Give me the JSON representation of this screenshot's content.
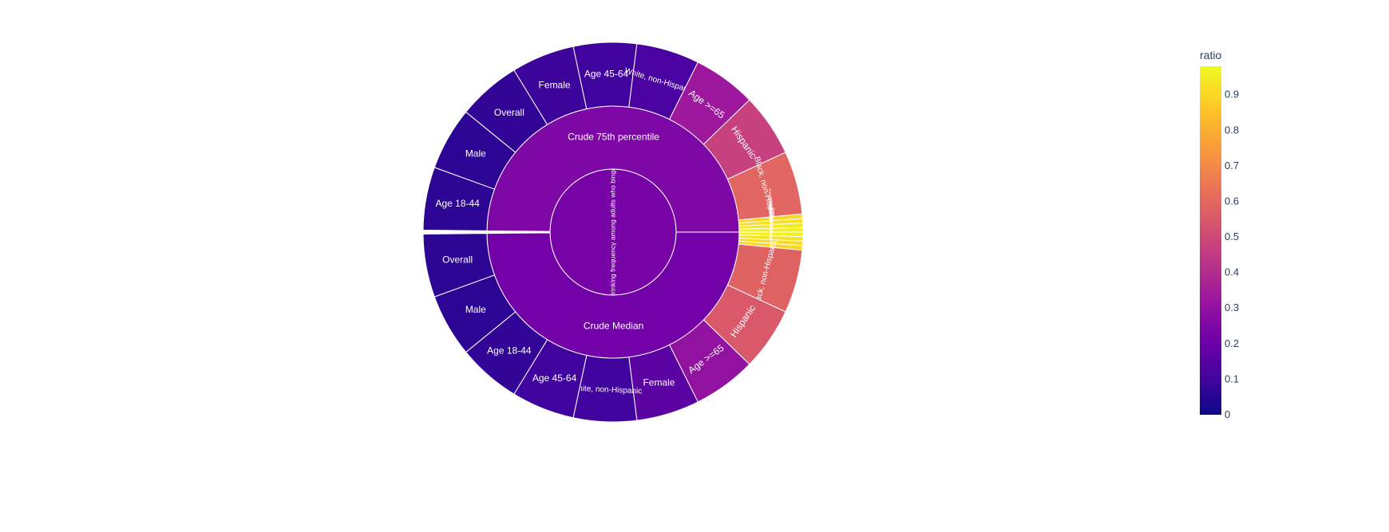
{
  "chart_data": {
    "type": "sunburst",
    "color_attribute": "ratio",
    "colorscale": [
      "#0d0887",
      "#46039f",
      "#7201a8",
      "#9c179e",
      "#bd3786",
      "#d8576b",
      "#ed7953",
      "#fb9f3a",
      "#fdca26",
      "#f0f921"
    ],
    "root": {
      "label": "drinking frequency among adults who binge",
      "ratio": 0.23
    },
    "groups": [
      {
        "label": "Crude 75th percentile",
        "ratio": 0.25,
        "children": [
          {
            "label": "Age 18-44",
            "ratio": 0.06
          },
          {
            "label": "Male",
            "ratio": 0.06
          },
          {
            "label": "Overall",
            "ratio": 0.07
          },
          {
            "label": "Female",
            "ratio": 0.09
          },
          {
            "label": "Age 45-64",
            "ratio": 0.1
          },
          {
            "label": "White, non-Hispanic",
            "ratio": 0.12
          },
          {
            "label": "Age >=65",
            "ratio": 0.33
          },
          {
            "label": "Hispanic",
            "ratio": 0.47
          },
          {
            "label": "Black, non-Hispanic",
            "ratio": 0.59
          },
          {
            "label": "Asian, non-Hispanic",
            "ratio": 0.9
          },
          {
            "label": "Multiracial, non-Hispanic",
            "ratio": 0.92
          },
          {
            "label": "American Indian or Alaska Native, non-Hispanic",
            "ratio": 0.94
          },
          {
            "label": "Hawaiian or Pacific Islander, non-Hispanic",
            "ratio": 0.96
          }
        ]
      },
      {
        "label": "Crude Median",
        "ratio": 0.22,
        "children": [
          {
            "label": "Hawaiian or Pacific Islander, non-Hispanic",
            "ratio": 0.96
          },
          {
            "label": "Multiracial, non-Hispanic",
            "ratio": 0.93
          },
          {
            "label": "Asian, non-Hispanic",
            "ratio": 0.91
          },
          {
            "label": "American Indian or Alaska Native, non-Hispanic",
            "ratio": 0.9
          },
          {
            "label": "Black, non-Hispanic",
            "ratio": 0.58
          },
          {
            "label": "Hispanic",
            "ratio": 0.55
          },
          {
            "label": "Age >=65",
            "ratio": 0.3
          },
          {
            "label": "Female",
            "ratio": 0.16
          },
          {
            "label": "White, non-Hispanic",
            "ratio": 0.1
          },
          {
            "label": "Age 45-64",
            "ratio": 0.1
          },
          {
            "label": "Age 18-44",
            "ratio": 0.07
          },
          {
            "label": "Male",
            "ratio": 0.06
          },
          {
            "label": "Overall",
            "ratio": 0.06
          }
        ]
      }
    ],
    "colorbar": {
      "title": "ratio",
      "range": [
        0,
        0.98
      ],
      "ticks": [
        "0",
        "0.1",
        "0.2",
        "0.3",
        "0.4",
        "0.5",
        "0.6",
        "0.7",
        "0.8",
        "0.9"
      ]
    }
  }
}
